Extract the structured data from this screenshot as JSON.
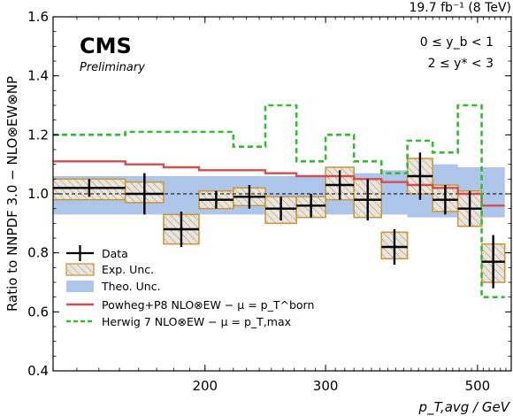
{
  "header": {
    "lumi": "19.7 fb⁻¹ (8 TeV)"
  },
  "cms": {
    "logo": "CMS",
    "status": "Preliminary"
  },
  "cuts": {
    "line1": "0 ≤ y_b < 1",
    "line2": "2 ≤ y* < 3"
  },
  "chart_data": {
    "type": "step-ratio",
    "xlabel": "p_T,avg / GeV",
    "ylabel": "Ratio to NNPDF 3.0 − NLO⊗EW⊗NP",
    "xscale": "log",
    "xlim": [
      120,
      560
    ],
    "ylim": [
      0.4,
      1.6
    ],
    "xticks": [
      200,
      300,
      500
    ],
    "yticks": [
      0.4,
      0.6,
      0.8,
      1.0,
      1.2,
      1.4,
      1.6
    ],
    "reference_line": 1.0,
    "bin_edges": [
      120,
      153,
      174,
      196,
      220,
      245,
      272,
      300,
      330,
      362,
      395,
      430,
      468,
      507,
      548
    ],
    "data": {
      "name": "Data",
      "y": [
        1.02,
        1.0,
        0.88,
        0.98,
        0.99,
        0.95,
        0.96,
        1.03,
        0.98,
        0.82,
        1.06,
        0.98,
        0.95,
        0.77
      ],
      "err_up": [
        0.03,
        0.07,
        0.06,
        0.03,
        0.04,
        0.04,
        0.04,
        0.05,
        0.07,
        0.06,
        0.08,
        0.05,
        0.06,
        0.09
      ],
      "err_dn": [
        0.03,
        0.07,
        0.06,
        0.03,
        0.04,
        0.04,
        0.04,
        0.05,
        0.07,
        0.06,
        0.08,
        0.05,
        0.06,
        0.09
      ]
    },
    "exp_unc": {
      "name": "Exp. Unc.",
      "lo": [
        0.98,
        0.97,
        0.83,
        0.95,
        0.96,
        0.9,
        0.92,
        0.98,
        0.92,
        0.78,
        1.0,
        0.94,
        0.89,
        0.7
      ],
      "hi": [
        1.05,
        1.04,
        0.93,
        1.01,
        1.02,
        0.99,
        0.99,
        1.09,
        1.05,
        0.87,
        1.12,
        1.03,
        1.01,
        0.83
      ]
    },
    "theo_unc": {
      "name": "Theo. Unc.",
      "lo": [
        0.93,
        0.93,
        0.93,
        0.93,
        0.93,
        0.93,
        0.93,
        0.93,
        0.93,
        0.93,
        0.92,
        0.92,
        0.92,
        0.92
      ],
      "hi": [
        1.06,
        1.06,
        1.06,
        1.06,
        1.06,
        1.06,
        1.06,
        1.06,
        1.07,
        1.08,
        1.1,
        1.1,
        1.09,
        1.09
      ]
    },
    "powheg": {
      "name": "Powheg+P8 NLO⊗EW − μ = p_T^born",
      "color": "#d05050",
      "y": [
        1.11,
        1.1,
        1.09,
        1.08,
        1.08,
        1.07,
        1.06,
        1.06,
        1.05,
        1.04,
        1.03,
        1.02,
        1.0,
        0.96
      ]
    },
    "herwig": {
      "name": "Herwig 7 NLO⊗EW − μ = p_T,max",
      "color": "#33bb33",
      "y": [
        1.2,
        1.21,
        1.21,
        1.21,
        1.16,
        1.3,
        1.11,
        1.2,
        1.11,
        1.07,
        1.18,
        1.14,
        1.3,
        0.65
      ]
    },
    "colors": {
      "exp_fill": "#e8e8e8",
      "exp_edge": "#c89a40",
      "theo_fill": "#aec6ea"
    }
  }
}
